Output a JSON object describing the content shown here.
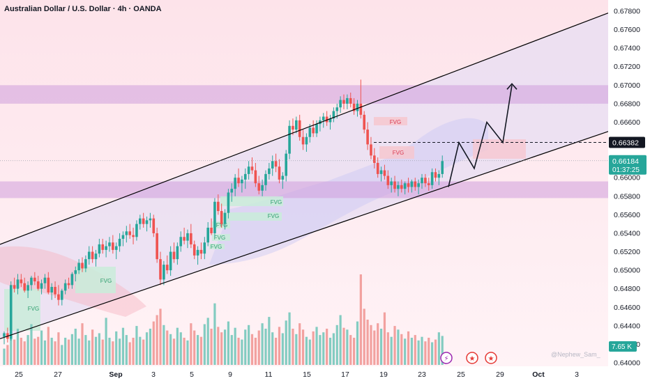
{
  "header": {
    "title": "Australian Dollar / U.S. Dollar · 4h · OANDA"
  },
  "watermark": "@Nephew_Sam_",
  "colors": {
    "up": "#26a69a",
    "down": "#ef5350",
    "zone": "#cf9fdc",
    "channel": "#000000",
    "price_tag": "#26a69a",
    "ref_tag": "#131722",
    "volume_tag": "#26a69a"
  },
  "chart_data": {
    "type": "candlestick",
    "symbol": "AUDUSD",
    "timeframe": "4h",
    "source": "OANDA",
    "y_axis": {
      "range": [
        0.64,
        0.678
      ],
      "ticks": [
        "0.67800",
        "0.67600",
        "0.67400",
        "0.67200",
        "0.67000",
        "0.66800",
        "0.66600",
        "0.66400",
        "0.66200",
        "0.66000",
        "0.65800",
        "0.65600",
        "0.65400",
        "0.65200",
        "0.65000",
        "0.64800",
        "0.64600",
        "0.64400",
        "0.64200",
        "0.64000"
      ]
    },
    "x_axis": {
      "ticks": [
        "25",
        "27",
        "Sep",
        "3",
        "5",
        "9",
        "11",
        "15",
        "17",
        "19",
        "23",
        "25",
        "29",
        "Oct",
        "3"
      ]
    },
    "last_price": {
      "value": "0.66184",
      "countdown": "01:37:25"
    },
    "reference_level": {
      "value": "0.66382"
    },
    "volume_label": "7.65 K",
    "supply_demand_zones": [
      {
        "from": 0.668,
        "to": 0.67
      },
      {
        "from": 0.6578,
        "to": 0.6596
      }
    ],
    "fvg_label": "FVG",
    "fvg_labels_count": 9,
    "channel": {
      "upper": {
        "start": [
          "25",
          0.6528
        ],
        "end": [
          "3",
          0.6778
        ]
      },
      "lower": {
        "start": [
          "25",
          0.6426
        ],
        "end": [
          "3",
          0.665
        ]
      }
    },
    "projection_path": [
      0.659,
      0.6638,
      0.661,
      0.666,
      0.6638,
      0.67
    ],
    "candles": [
      [
        0.6428,
        0.6434,
        0.642,
        0.6432
      ],
      [
        0.6432,
        0.6438,
        0.6422,
        0.6426
      ],
      [
        0.6426,
        0.6488,
        0.6424,
        0.6484
      ],
      [
        0.6484,
        0.6492,
        0.6476,
        0.648
      ],
      [
        0.648,
        0.6496,
        0.6474,
        0.649
      ],
      [
        0.649,
        0.6496,
        0.6482,
        0.6486
      ],
      [
        0.6486,
        0.6492,
        0.6476,
        0.6478
      ],
      [
        0.6478,
        0.6488,
        0.647,
        0.6484
      ],
      [
        0.6484,
        0.6494,
        0.6478,
        0.6492
      ],
      [
        0.6492,
        0.6498,
        0.6484,
        0.6488
      ],
      [
        0.6488,
        0.6494,
        0.6478,
        0.648
      ],
      [
        0.648,
        0.649,
        0.6474,
        0.6486
      ],
      [
        0.6486,
        0.6496,
        0.648,
        0.6492
      ],
      [
        0.6492,
        0.6498,
        0.6474,
        0.6476
      ],
      [
        0.6476,
        0.6486,
        0.6468,
        0.6482
      ],
      [
        0.6482,
        0.6488,
        0.647,
        0.6474
      ],
      [
        0.6474,
        0.6484,
        0.6462,
        0.6468
      ],
      [
        0.6468,
        0.648,
        0.6462,
        0.6478
      ],
      [
        0.6478,
        0.649,
        0.6474,
        0.6486
      ],
      [
        0.6486,
        0.6492,
        0.648,
        0.6484
      ],
      [
        0.6484,
        0.6498,
        0.648,
        0.6496
      ],
      [
        0.6496,
        0.6504,
        0.6488,
        0.65
      ],
      [
        0.65,
        0.6512,
        0.6496,
        0.6508
      ],
      [
        0.6508,
        0.6514,
        0.6498,
        0.6502
      ],
      [
        0.6502,
        0.6516,
        0.6498,
        0.6512
      ],
      [
        0.6512,
        0.6526,
        0.6506,
        0.652
      ],
      [
        0.652,
        0.6526,
        0.6508,
        0.6512
      ],
      [
        0.6512,
        0.6522,
        0.6504,
        0.6518
      ],
      [
        0.6518,
        0.6534,
        0.6514,
        0.6528
      ],
      [
        0.6528,
        0.6534,
        0.6518,
        0.6522
      ],
      [
        0.6522,
        0.6532,
        0.6514,
        0.6526
      ],
      [
        0.6526,
        0.6536,
        0.652,
        0.653
      ],
      [
        0.653,
        0.6538,
        0.6518,
        0.6522
      ],
      [
        0.6522,
        0.653,
        0.6512,
        0.6526
      ],
      [
        0.6526,
        0.654,
        0.652,
        0.6534
      ],
      [
        0.6534,
        0.6542,
        0.6526,
        0.6538
      ],
      [
        0.6538,
        0.6548,
        0.653,
        0.6542
      ],
      [
        0.6542,
        0.655,
        0.6534,
        0.6538
      ],
      [
        0.6538,
        0.6546,
        0.6528,
        0.6536
      ],
      [
        0.6536,
        0.6554,
        0.6532,
        0.655
      ],
      [
        0.655,
        0.656,
        0.6544,
        0.6556
      ],
      [
        0.6556,
        0.6562,
        0.6546,
        0.655
      ],
      [
        0.655,
        0.6558,
        0.6542,
        0.6554
      ],
      [
        0.6554,
        0.6562,
        0.6546,
        0.6556
      ],
      [
        0.6556,
        0.656,
        0.6536,
        0.654
      ],
      [
        0.654,
        0.6546,
        0.6508,
        0.6512
      ],
      [
        0.6512,
        0.652,
        0.6484,
        0.649
      ],
      [
        0.649,
        0.651,
        0.6484,
        0.6506
      ],
      [
        0.6506,
        0.6516,
        0.6496,
        0.65
      ],
      [
        0.65,
        0.6526,
        0.6494,
        0.652
      ],
      [
        0.652,
        0.653,
        0.6508,
        0.6512
      ],
      [
        0.6512,
        0.653,
        0.6506,
        0.6526
      ],
      [
        0.6526,
        0.6542,
        0.652,
        0.6536
      ],
      [
        0.6536,
        0.6546,
        0.6528,
        0.6532
      ],
      [
        0.6532,
        0.6544,
        0.6524,
        0.654
      ],
      [
        0.654,
        0.655,
        0.6524,
        0.6528
      ],
      [
        0.6528,
        0.6532,
        0.6512,
        0.6516
      ],
      [
        0.6516,
        0.6526,
        0.6506,
        0.6522
      ],
      [
        0.6522,
        0.653,
        0.6512,
        0.6518
      ],
      [
        0.6518,
        0.6536,
        0.6512,
        0.653
      ],
      [
        0.653,
        0.6552,
        0.6526,
        0.6546
      ],
      [
        0.6546,
        0.6556,
        0.6538,
        0.654
      ],
      [
        0.654,
        0.6578,
        0.6536,
        0.6574
      ],
      [
        0.6574,
        0.6582,
        0.656,
        0.6564
      ],
      [
        0.6564,
        0.6572,
        0.6546,
        0.655
      ],
      [
        0.655,
        0.6566,
        0.6544,
        0.6562
      ],
      [
        0.6562,
        0.6588,
        0.6556,
        0.6584
      ],
      [
        0.6584,
        0.6594,
        0.6574,
        0.6588
      ],
      [
        0.6588,
        0.6604,
        0.658,
        0.66
      ],
      [
        0.66,
        0.661,
        0.659,
        0.6594
      ],
      [
        0.6594,
        0.6602,
        0.6584,
        0.6598
      ],
      [
        0.6598,
        0.661,
        0.6588,
        0.6604
      ],
      [
        0.6604,
        0.6618,
        0.6598,
        0.6612
      ],
      [
        0.6612,
        0.6622,
        0.6604,
        0.6608
      ],
      [
        0.6608,
        0.6616,
        0.659,
        0.6594
      ],
      [
        0.6594,
        0.6602,
        0.6582,
        0.6586
      ],
      [
        0.6586,
        0.6598,
        0.658,
        0.6592
      ],
      [
        0.6592,
        0.6608,
        0.6586,
        0.6604
      ],
      [
        0.6604,
        0.6616,
        0.6598,
        0.661
      ],
      [
        0.661,
        0.6624,
        0.6602,
        0.6618
      ],
      [
        0.6618,
        0.6626,
        0.6606,
        0.6612
      ],
      [
        0.6612,
        0.662,
        0.6594,
        0.6598
      ],
      [
        0.6598,
        0.6606,
        0.6588,
        0.6602
      ],
      [
        0.6602,
        0.663,
        0.6596,
        0.6626
      ],
      [
        0.6626,
        0.6662,
        0.662,
        0.6656
      ],
      [
        0.6656,
        0.6664,
        0.6646,
        0.6652
      ],
      [
        0.6652,
        0.6666,
        0.6648,
        0.6662
      ],
      [
        0.6662,
        0.6668,
        0.664,
        0.6644
      ],
      [
        0.6644,
        0.6652,
        0.663,
        0.6636
      ],
      [
        0.6636,
        0.6648,
        0.6628,
        0.6644
      ],
      [
        0.6644,
        0.6658,
        0.6638,
        0.6654
      ],
      [
        0.6654,
        0.6662,
        0.6644,
        0.6648
      ],
      [
        0.6648,
        0.6662,
        0.6644,
        0.6658
      ],
      [
        0.6658,
        0.6666,
        0.665,
        0.6662
      ],
      [
        0.6662,
        0.667,
        0.6654,
        0.6666
      ],
      [
        0.6666,
        0.6672,
        0.6656,
        0.666
      ],
      [
        0.666,
        0.6668,
        0.6652,
        0.6664
      ],
      [
        0.6664,
        0.6676,
        0.666,
        0.6672
      ],
      [
        0.6672,
        0.668,
        0.6664,
        0.6676
      ],
      [
        0.6676,
        0.6688,
        0.667,
        0.6684
      ],
      [
        0.6684,
        0.669,
        0.6674,
        0.668
      ],
      [
        0.668,
        0.669,
        0.6674,
        0.6686
      ],
      [
        0.6686,
        0.6692,
        0.6676,
        0.668
      ],
      [
        0.668,
        0.6686,
        0.6668,
        0.6672
      ],
      [
        0.6672,
        0.6684,
        0.6666,
        0.668
      ],
      [
        0.668,
        0.6706,
        0.6664,
        0.6668
      ],
      [
        0.6668,
        0.6672,
        0.6648,
        0.6652
      ],
      [
        0.6652,
        0.666,
        0.663,
        0.6636
      ],
      [
        0.6636,
        0.6644,
        0.662,
        0.6624
      ],
      [
        0.6624,
        0.6632,
        0.661,
        0.6616
      ],
      [
        0.6616,
        0.6622,
        0.66,
        0.6604
      ],
      [
        0.6604,
        0.6612,
        0.6596,
        0.6608
      ],
      [
        0.6608,
        0.6614,
        0.6598,
        0.6602
      ],
      [
        0.6602,
        0.6608,
        0.6588,
        0.6592
      ],
      [
        0.6592,
        0.66,
        0.6584,
        0.6596
      ],
      [
        0.6596,
        0.6602,
        0.6584,
        0.6588
      ],
      [
        0.6588,
        0.6596,
        0.658,
        0.6592
      ],
      [
        0.6592,
        0.6598,
        0.6584,
        0.6588
      ],
      [
        0.6588,
        0.6596,
        0.6582,
        0.6594
      ],
      [
        0.6594,
        0.66,
        0.6584,
        0.659
      ],
      [
        0.659,
        0.6598,
        0.6584,
        0.6596
      ],
      [
        0.6596,
        0.66,
        0.6586,
        0.659
      ],
      [
        0.659,
        0.6598,
        0.6582,
        0.6594
      ],
      [
        0.6594,
        0.6604,
        0.6588,
        0.66
      ],
      [
        0.66,
        0.6604,
        0.659,
        0.6594
      ],
      [
        0.6594,
        0.66,
        0.6586,
        0.6592
      ],
      [
        0.6592,
        0.661,
        0.6588,
        0.6606
      ],
      [
        0.6606,
        0.661,
        0.6596,
        0.66
      ],
      [
        0.66,
        0.6608,
        0.6592,
        0.6604
      ],
      [
        0.6604,
        0.6624,
        0.66,
        0.6618
      ]
    ],
    "volumes": [
      0.18,
      0.22,
      0.35,
      0.28,
      0.4,
      0.3,
      0.26,
      0.33,
      0.45,
      0.29,
      0.31,
      0.38,
      0.27,
      0.42,
      0.3,
      0.26,
      0.36,
      0.22,
      0.3,
      0.28,
      0.34,
      0.4,
      0.29,
      0.46,
      0.33,
      0.27,
      0.39,
      0.31,
      0.35,
      0.28,
      0.52,
      0.3,
      0.26,
      0.37,
      0.29,
      0.41,
      0.33,
      0.25,
      0.3,
      0.43,
      0.31,
      0.28,
      0.36,
      0.4,
      0.48,
      0.55,
      0.62,
      0.44,
      0.38,
      0.34,
      0.29,
      0.41,
      0.36,
      0.3,
      0.27,
      0.46,
      0.38,
      0.33,
      0.31,
      0.45,
      0.52,
      0.4,
      0.68,
      0.42,
      0.36,
      0.39,
      0.48,
      0.33,
      0.41,
      0.3,
      0.28,
      0.39,
      0.44,
      0.34,
      0.3,
      0.38,
      0.46,
      0.4,
      0.53,
      0.36,
      0.3,
      0.42,
      0.35,
      0.49,
      0.58,
      0.4,
      0.34,
      0.46,
      0.39,
      0.31,
      0.28,
      0.37,
      0.42,
      0.33,
      0.36,
      0.4,
      0.3,
      0.35,
      0.44,
      0.55,
      0.41,
      0.39,
      0.33,
      0.3,
      0.48,
      1.0,
      0.62,
      0.5,
      0.44,
      0.38,
      0.46,
      0.4,
      0.58,
      0.36,
      0.31,
      0.43,
      0.39,
      0.34,
      0.29,
      0.37,
      0.3,
      0.33,
      0.27,
      0.31,
      0.26,
      0.3,
      0.25,
      0.28,
      0.36,
      0.32
    ]
  }
}
